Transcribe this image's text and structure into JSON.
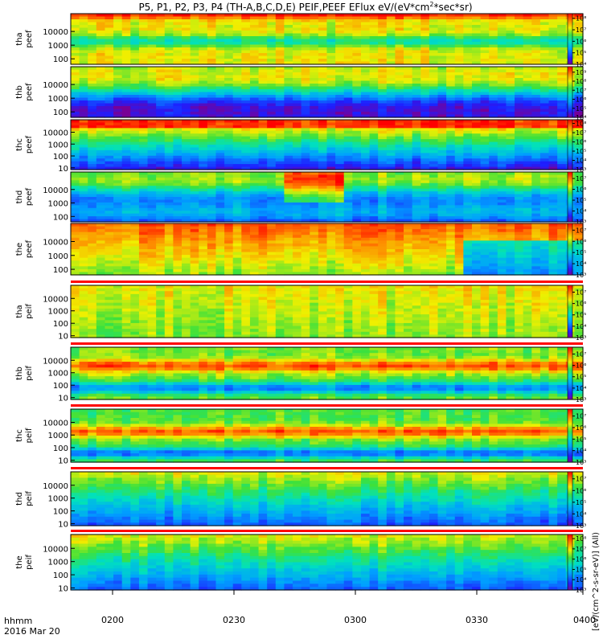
{
  "chart_data": {
    "type": "heatmap",
    "title": "P5, P1, P2, P3, P4 (TH-A,B,C,D,E) PEIF,PEEF EFlux eV/(eV*cm²*sec*sr)",
    "title_prefix": "P5, P1, P2, P3, P4 (TH-A,B,C,D,E) PEIF,PEEF EFlux eV/(eV*cm",
    "title_sup": "2",
    "title_suffix": "*sec*sr)",
    "xlabel_line1": "hhmm",
    "xlabel_line2": "2016 Mar 20",
    "x_tick_labels": [
      "0200",
      "0230",
      "0300",
      "0330",
      "0400"
    ],
    "x_range_hhmm": [
      "0200",
      "0400"
    ],
    "yscale": "log",
    "colorbar_label": "[eV/(cm^2-s-sr-eV)] (All)",
    "panels": [
      {
        "name": "tha peef",
        "label_line1": "tha",
        "label_line2": "peef",
        "y_ticks": [
          "100",
          "1000",
          "10000"
        ],
        "cbar_ticks": [
          "10⁴",
          "10⁵",
          "10⁶",
          "10⁷",
          "10⁸"
        ],
        "cbar_range_log": [
          4,
          8.4
        ]
      },
      {
        "name": "thb peef",
        "label_line1": "thb",
        "label_line2": "peef",
        "y_ticks": [
          "100",
          "1000",
          "10000"
        ],
        "cbar_ticks": [
          "10⁴",
          "10⁵",
          "10⁶",
          "10⁷",
          "10⁸",
          "10⁹"
        ],
        "cbar_range_log": [
          4,
          9.6
        ]
      },
      {
        "name": "thc peef",
        "label_line1": "thc",
        "label_line2": "peef",
        "y_ticks": [
          "10",
          "100",
          "1000",
          "10000"
        ],
        "cbar_ticks": [
          "10³",
          "10⁴",
          "10⁵",
          "10⁶",
          "10⁷",
          "10⁸"
        ],
        "cbar_range_log": [
          3,
          8.4
        ]
      },
      {
        "name": "thd peef",
        "label_line1": "thd",
        "label_line2": "peef",
        "y_ticks": [
          "100",
          "1000",
          "10000"
        ],
        "cbar_ticks": [
          "10³",
          "10⁴",
          "10⁵",
          "10⁶",
          "10⁷"
        ],
        "cbar_range_log": [
          3,
          7.6
        ]
      },
      {
        "name": "the peef",
        "label_line1": "the",
        "label_line2": "peef",
        "y_ticks": [
          "100",
          "1000",
          "10000"
        ],
        "cbar_ticks": [
          "10³",
          "10⁴",
          "10⁵",
          "10⁶",
          "10⁷"
        ],
        "cbar_range_log": [
          3,
          7.6
        ]
      },
      {
        "name": "tha peif",
        "label_line1": "tha",
        "label_line2": "peif",
        "y_ticks": [
          "10",
          "100",
          "1000",
          "10000"
        ],
        "cbar_ticks": [
          "10³",
          "10⁴",
          "10⁵",
          "10⁶",
          "10⁷"
        ],
        "cbar_range_log": [
          3,
          7.6
        ]
      },
      {
        "name": "thb peif",
        "label_line1": "thb",
        "label_line2": "peif",
        "y_ticks": [
          "10",
          "100",
          "1000",
          "10000"
        ],
        "cbar_ticks": [
          "10³",
          "10⁴",
          "10⁵",
          "10⁶",
          "10⁷"
        ],
        "cbar_range_log": [
          3,
          7.6
        ]
      },
      {
        "name": "thc peif",
        "label_line1": "thc",
        "label_line2": "peif",
        "y_ticks": [
          "10",
          "100",
          "1000",
          "10000"
        ],
        "cbar_ticks": [
          "10³",
          "10⁴",
          "10⁵",
          "10⁶",
          "10⁷"
        ],
        "cbar_range_log": [
          3,
          7.6
        ]
      },
      {
        "name": "thd peif",
        "label_line1": "thd",
        "label_line2": "peif",
        "y_ticks": [
          "10",
          "100",
          "1000",
          "10000"
        ],
        "cbar_ticks": [
          "10³",
          "10⁴",
          "10⁵",
          "10⁶",
          "10⁷"
        ],
        "cbar_range_log": [
          3,
          7.6
        ]
      },
      {
        "name": "the peif",
        "label_line1": "the",
        "label_line2": "peif",
        "y_ticks": [
          "10",
          "100",
          "1000",
          "10000"
        ],
        "cbar_ticks": [
          "10³",
          "10⁴",
          "10⁵",
          "10⁶",
          "10⁷",
          "10⁸"
        ],
        "cbar_range_log": [
          3,
          8.4
        ]
      }
    ]
  }
}
